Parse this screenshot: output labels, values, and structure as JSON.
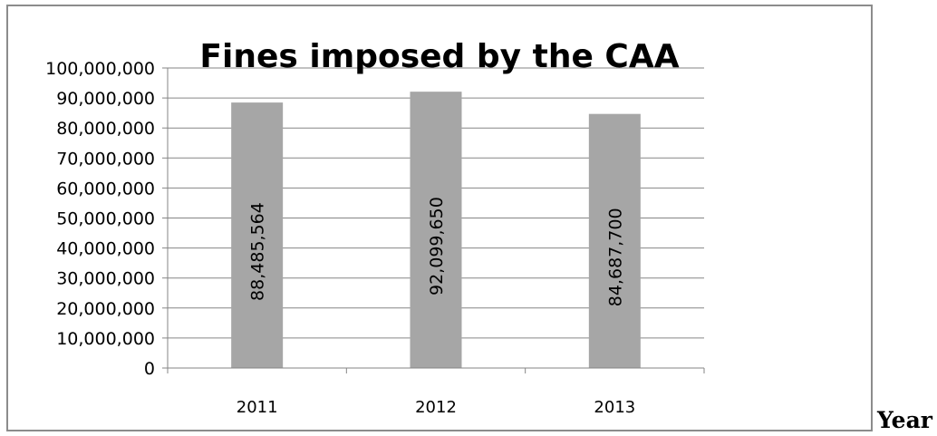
{
  "chart_data": {
    "type": "bar",
    "title": "Fines imposed by the CAA",
    "categories": [
      "2011",
      "2012",
      "2013"
    ],
    "values": [
      88485564,
      92099650,
      84687700
    ],
    "data_labels": [
      "88,485,564",
      "92,099,650",
      "84,687,700"
    ],
    "ylim": [
      0,
      100000000
    ],
    "y_ticks": [
      0,
      10000000,
      20000000,
      30000000,
      40000000,
      50000000,
      60000000,
      70000000,
      80000000,
      90000000,
      100000000
    ],
    "y_tick_labels": [
      "0",
      "10,000,000",
      "20,000,000",
      "30,000,000",
      "40,000,000",
      "50,000,000",
      "60,000,000",
      "70,000,000",
      "80,000,000",
      "90,000,000",
      "100,000,000"
    ],
    "grid": true,
    "legend": "none",
    "bar_color": "#a6a6a6",
    "grid_color": "#868686"
  },
  "outside_label": "Year"
}
